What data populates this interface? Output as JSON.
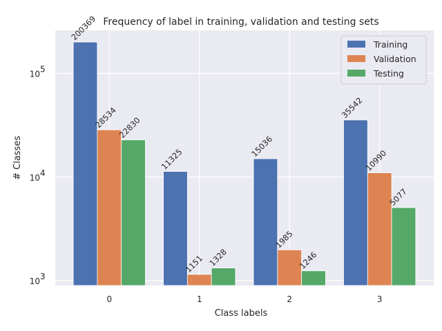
{
  "chart_data": {
    "type": "bar",
    "title": "Frequency of label in training, validation and testing sets",
    "xlabel": "Class labels",
    "ylabel": "# Classes",
    "yscale": "log",
    "ylim": [
      900,
      260000
    ],
    "y_ticks": [
      1000,
      10000,
      100000
    ],
    "y_tick_labels": [
      {
        "base": "10",
        "exp": "3"
      },
      {
        "base": "10",
        "exp": "4"
      },
      {
        "base": "10",
        "exp": "5"
      }
    ],
    "categories": [
      "0",
      "1",
      "2",
      "3"
    ],
    "series": [
      {
        "name": "Training",
        "color": "#4c72b0",
        "values": [
          200369,
          11325,
          15036,
          35542
        ]
      },
      {
        "name": "Validation",
        "color": "#dd8452",
        "values": [
          28534,
          1151,
          1985,
          10990
        ]
      },
      {
        "name": "Testing",
        "color": "#55a868",
        "values": [
          22830,
          1328,
          1246,
          5077
        ]
      }
    ],
    "grid": true,
    "legend_position": "top-right",
    "background": "#eaeaf2"
  }
}
